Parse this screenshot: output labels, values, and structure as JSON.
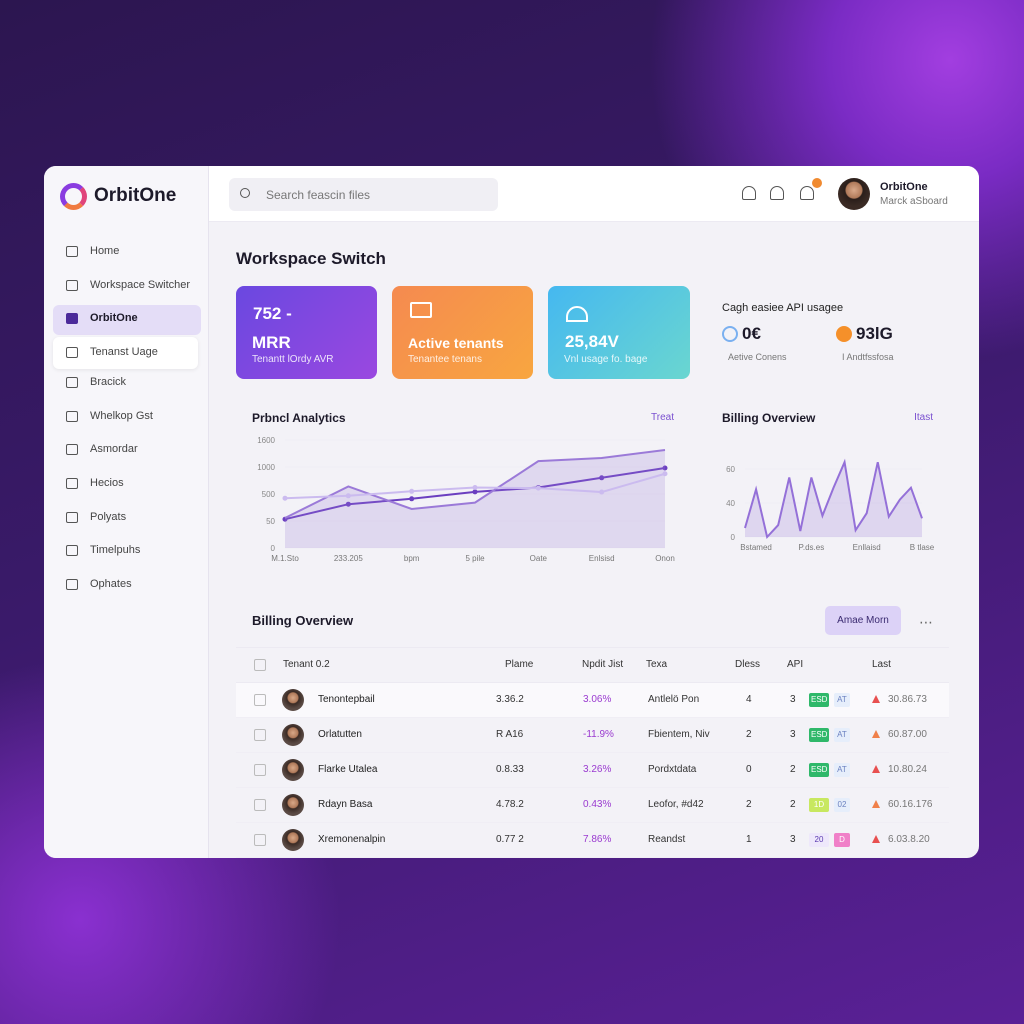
{
  "sidebar": {
    "brand": "OrbitOne",
    "active": 2,
    "nav": [
      "Home",
      "Workspace Switcher",
      "OrbitOne",
      "Tenanst Uage",
      "Bracick",
      "Whelkop Gst",
      "Asmordar",
      "Hecios",
      "Polyats",
      "Timelpuhs",
      "Ophates"
    ]
  },
  "topbar": {
    "search_placeholder": "Search feascin files",
    "user_name": "OrbitOne",
    "user_role": "Marck aSboard"
  },
  "page_title": "Workspace Switch",
  "kpi_cards": [
    {
      "value": "752 -",
      "label": "MRR",
      "sub": "Tenantt lOrdy AVR"
    },
    {
      "label": "Active tenants",
      "sub": "Tenantee tenans"
    },
    {
      "value": "25,84V",
      "sub": "Vnl usage fo. bage"
    }
  ],
  "api_card": {
    "title": "Cagh easiee API usagee",
    "metrics": [
      {
        "value": "0€",
        "label": "Aetive Conens"
      },
      {
        "value": "93lG",
        "label": "I Andtfssfosa"
      }
    ]
  },
  "chart_data": [
    {
      "type": "line",
      "title": "Prbncl Analytics",
      "link": "Treat",
      "categories": [
        "M.1.Sto",
        "233.205",
        "bpm",
        "5 pile",
        "Oate",
        "Enlsisd",
        "Onon"
      ],
      "yticks": [
        0,
        50,
        500,
        1000,
        1600
      ],
      "series": [
        {
          "color": "#6b3fc0",
          "values": [
            80,
            330,
            420,
            540,
            620,
            800,
            982
          ]
        },
        {
          "color": "#9b7ad8",
          "area": true,
          "values": [
            100,
            640,
            250,
            356,
            1130,
            1200,
            1378
          ]
        },
        {
          "color": "#cbbbef",
          "values": [
            430,
            470,
            550,
            620,
            608,
            536,
            875
          ]
        }
      ]
    },
    {
      "type": "line",
      "title": "Billing Overview",
      "link": "Itast",
      "categories": [
        null,
        "Bstamed",
        null,
        null,
        null,
        null,
        "P.ds.es",
        null,
        null,
        null,
        null,
        "Enllaisd",
        null,
        null,
        null,
        null,
        "B tlase"
      ],
      "yticks": [
        0,
        40,
        60
      ],
      "series": [
        {
          "color": "#9470d8",
          "area": true,
          "values": [
            10.6,
            48,
            0,
            14,
            55,
            7,
            55,
            25,
            49,
            64,
            8,
            28,
            64,
            24,
            42,
            49,
            22
          ]
        }
      ]
    }
  ],
  "table": {
    "title": "Billing Overview",
    "button": "Amae Morn",
    "columns": [
      "Tenant 0.2",
      "Plame",
      "Npdit Jist",
      "Texa",
      "Dless",
      "API",
      "Last"
    ],
    "rows": [
      [
        "Tenontepbail",
        "3.36.2",
        "3.06%",
        "Antlelö Pon",
        "4",
        "3",
        "ESD",
        "AT",
        "30.86.73"
      ],
      [
        "Orlatutten",
        "R A16",
        "-11.9%",
        "Fbientem, Niv",
        "2",
        "3",
        "ESD",
        "AT",
        "60.87.00"
      ],
      [
        "Flarke Utalea",
        "0.8.33",
        "3.26%",
        "Pordxtdata",
        "0",
        "2",
        "ESD",
        "AT",
        "10.80.24"
      ],
      [
        "Rdayn Basa",
        "4.78.2",
        "0.43%",
        "Leofor, #d42",
        "2",
        "2",
        "1D",
        "02",
        "60.16.176"
      ],
      [
        "Xremonenalpin",
        "0.77 2",
        "7.86%",
        "Reandst",
        "1",
        "3",
        "20",
        "D",
        "6.03.8.20"
      ]
    ]
  }
}
